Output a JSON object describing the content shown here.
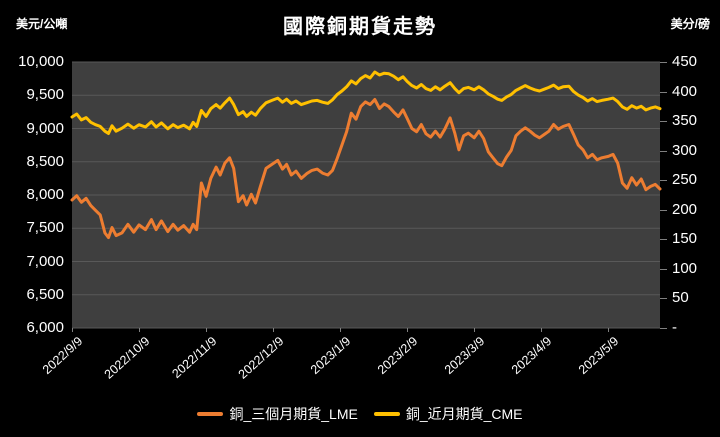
{
  "title": "國際銅期貨走勢",
  "left_axis": {
    "unit": "美元/公噸",
    "min": 6000,
    "max": 10000,
    "step": 500,
    "labels": [
      "10,000",
      "9,500",
      "9,000",
      "8,500",
      "8,000",
      "7,500",
      "7,000",
      "6,500",
      "6,000"
    ]
  },
  "right_axis": {
    "unit": "美分/磅",
    "min": 0,
    "max": 450,
    "step": 50,
    "labels": [
      "450",
      "400",
      "350",
      "300",
      "250",
      "200",
      "150",
      "100",
      "50",
      "-"
    ]
  },
  "x_axis": {
    "labels": [
      "2022/9/9",
      "2022/10/9",
      "2022/11/9",
      "2022/12/9",
      "2023/1/9",
      "2023/2/9",
      "2023/3/9",
      "2023/4/9",
      "2023/5/9"
    ]
  },
  "legend": {
    "items": [
      {
        "label": "銅_三個月期貨_LME",
        "color": "#ED7D31"
      },
      {
        "label": "銅_近月期貨_CME",
        "color": "#FFC000"
      }
    ]
  },
  "colors": {
    "background": "#000000",
    "plot_background": "#3F3F3F",
    "gridline": "#595959",
    "text": "#FFFFFF",
    "lme_orange": "#ED7D31",
    "cme_yellow": "#FFC000"
  },
  "chart_data": {
    "type": "line",
    "title": "國際銅期貨走勢",
    "x_range_note": "x is fraction of plot width; month ticks 2022/9/9..2023/5/9 fall at i*0.1139",
    "grid": true,
    "legend_position": "bottom",
    "series": [
      {
        "name": "銅_三個月期貨_LME",
        "axis": "left",
        "units": "USD/metric ton",
        "color": "#ED7D31",
        "points": [
          [
            0.0,
            7925
          ],
          [
            0.008,
            7990
          ],
          [
            0.016,
            7890
          ],
          [
            0.024,
            7950
          ],
          [
            0.032,
            7840
          ],
          [
            0.04,
            7770
          ],
          [
            0.048,
            7700
          ],
          [
            0.056,
            7430
          ],
          [
            0.062,
            7360
          ],
          [
            0.068,
            7510
          ],
          [
            0.075,
            7390
          ],
          [
            0.085,
            7430
          ],
          [
            0.095,
            7560
          ],
          [
            0.105,
            7440
          ],
          [
            0.114,
            7550
          ],
          [
            0.125,
            7480
          ],
          [
            0.135,
            7630
          ],
          [
            0.143,
            7480
          ],
          [
            0.152,
            7610
          ],
          [
            0.163,
            7450
          ],
          [
            0.172,
            7560
          ],
          [
            0.18,
            7470
          ],
          [
            0.19,
            7540
          ],
          [
            0.2,
            7440
          ],
          [
            0.206,
            7560
          ],
          [
            0.212,
            7480
          ],
          [
            0.22,
            8180
          ],
          [
            0.228,
            7980
          ],
          [
            0.236,
            8250
          ],
          [
            0.245,
            8420
          ],
          [
            0.252,
            8300
          ],
          [
            0.26,
            8480
          ],
          [
            0.268,
            8560
          ],
          [
            0.275,
            8400
          ],
          [
            0.283,
            7900
          ],
          [
            0.291,
            7990
          ],
          [
            0.297,
            7850
          ],
          [
            0.305,
            8010
          ],
          [
            0.312,
            7880
          ],
          [
            0.32,
            8120
          ],
          [
            0.33,
            8400
          ],
          [
            0.34,
            8460
          ],
          [
            0.35,
            8520
          ],
          [
            0.358,
            8390
          ],
          [
            0.365,
            8460
          ],
          [
            0.373,
            8300
          ],
          [
            0.381,
            8360
          ],
          [
            0.39,
            8250
          ],
          [
            0.399,
            8320
          ],
          [
            0.408,
            8370
          ],
          [
            0.417,
            8390
          ],
          [
            0.426,
            8330
          ],
          [
            0.435,
            8300
          ],
          [
            0.443,
            8370
          ],
          [
            0.451,
            8550
          ],
          [
            0.459,
            8750
          ],
          [
            0.467,
            8950
          ],
          [
            0.475,
            9230
          ],
          [
            0.483,
            9140
          ],
          [
            0.491,
            9330
          ],
          [
            0.499,
            9400
          ],
          [
            0.507,
            9360
          ],
          [
            0.515,
            9436
          ],
          [
            0.523,
            9300
          ],
          [
            0.531,
            9370
          ],
          [
            0.539,
            9330
          ],
          [
            0.547,
            9250
          ],
          [
            0.555,
            9180
          ],
          [
            0.563,
            9280
          ],
          [
            0.57,
            9150
          ],
          [
            0.578,
            9000
          ],
          [
            0.586,
            8950
          ],
          [
            0.594,
            9060
          ],
          [
            0.602,
            8920
          ],
          [
            0.61,
            8870
          ],
          [
            0.618,
            8960
          ],
          [
            0.626,
            8870
          ],
          [
            0.634,
            8990
          ],
          [
            0.643,
            9160
          ],
          [
            0.651,
            8930
          ],
          [
            0.658,
            8680
          ],
          [
            0.666,
            8890
          ],
          [
            0.674,
            8930
          ],
          [
            0.684,
            8860
          ],
          [
            0.692,
            8960
          ],
          [
            0.7,
            8850
          ],
          [
            0.708,
            8650
          ],
          [
            0.716,
            8560
          ],
          [
            0.724,
            8470
          ],
          [
            0.731,
            8440
          ],
          [
            0.739,
            8570
          ],
          [
            0.747,
            8670
          ],
          [
            0.755,
            8890
          ],
          [
            0.763,
            8960
          ],
          [
            0.771,
            9010
          ],
          [
            0.779,
            8960
          ],
          [
            0.787,
            8900
          ],
          [
            0.795,
            8860
          ],
          [
            0.803,
            8910
          ],
          [
            0.811,
            8960
          ],
          [
            0.819,
            9060
          ],
          [
            0.827,
            8990
          ],
          [
            0.835,
            9030
          ],
          [
            0.845,
            9060
          ],
          [
            0.853,
            8910
          ],
          [
            0.861,
            8750
          ],
          [
            0.869,
            8680
          ],
          [
            0.877,
            8560
          ],
          [
            0.885,
            8610
          ],
          [
            0.893,
            8530
          ],
          [
            0.901,
            8560
          ],
          [
            0.912,
            8580
          ],
          [
            0.92,
            8610
          ],
          [
            0.928,
            8480
          ],
          [
            0.936,
            8180
          ],
          [
            0.944,
            8100
          ],
          [
            0.952,
            8260
          ],
          [
            0.96,
            8150
          ],
          [
            0.968,
            8240
          ],
          [
            0.976,
            8080
          ],
          [
            0.984,
            8130
          ],
          [
            0.992,
            8160
          ],
          [
            1.0,
            8090
          ]
        ]
      },
      {
        "name": "銅_近月期貨_CME",
        "axis": "right",
        "units": "US cents/pound",
        "color": "#FFC000",
        "points": [
          [
            0.0,
            357
          ],
          [
            0.008,
            362
          ],
          [
            0.016,
            352
          ],
          [
            0.024,
            356
          ],
          [
            0.032,
            348
          ],
          [
            0.04,
            344
          ],
          [
            0.048,
            341
          ],
          [
            0.056,
            333
          ],
          [
            0.062,
            329
          ],
          [
            0.068,
            342
          ],
          [
            0.075,
            333
          ],
          [
            0.085,
            338
          ],
          [
            0.095,
            345
          ],
          [
            0.105,
            338
          ],
          [
            0.114,
            344
          ],
          [
            0.125,
            340
          ],
          [
            0.135,
            349
          ],
          [
            0.143,
            340
          ],
          [
            0.152,
            347
          ],
          [
            0.163,
            337
          ],
          [
            0.172,
            344
          ],
          [
            0.18,
            339
          ],
          [
            0.19,
            343
          ],
          [
            0.2,
            337
          ],
          [
            0.206,
            348
          ],
          [
            0.212,
            341
          ],
          [
            0.22,
            368
          ],
          [
            0.228,
            358
          ],
          [
            0.236,
            371
          ],
          [
            0.245,
            378
          ],
          [
            0.252,
            372
          ],
          [
            0.26,
            381
          ],
          [
            0.268,
            389
          ],
          [
            0.275,
            378
          ],
          [
            0.283,
            361
          ],
          [
            0.291,
            366
          ],
          [
            0.297,
            358
          ],
          [
            0.305,
            365
          ],
          [
            0.312,
            360
          ],
          [
            0.32,
            371
          ],
          [
            0.33,
            381
          ],
          [
            0.34,
            385
          ],
          [
            0.35,
            389
          ],
          [
            0.358,
            382
          ],
          [
            0.365,
            387
          ],
          [
            0.373,
            380
          ],
          [
            0.381,
            384
          ],
          [
            0.39,
            378
          ],
          [
            0.399,
            381
          ],
          [
            0.408,
            384
          ],
          [
            0.417,
            385
          ],
          [
            0.426,
            382
          ],
          [
            0.435,
            380
          ],
          [
            0.443,
            386
          ],
          [
            0.451,
            395
          ],
          [
            0.459,
            401
          ],
          [
            0.467,
            408
          ],
          [
            0.475,
            418
          ],
          [
            0.483,
            413
          ],
          [
            0.491,
            422
          ],
          [
            0.499,
            427
          ],
          [
            0.507,
            423
          ],
          [
            0.515,
            433
          ],
          [
            0.523,
            428
          ],
          [
            0.531,
            431
          ],
          [
            0.539,
            430
          ],
          [
            0.547,
            426
          ],
          [
            0.555,
            420
          ],
          [
            0.563,
            425
          ],
          [
            0.57,
            417
          ],
          [
            0.578,
            410
          ],
          [
            0.586,
            406
          ],
          [
            0.594,
            412
          ],
          [
            0.602,
            405
          ],
          [
            0.61,
            402
          ],
          [
            0.618,
            408
          ],
          [
            0.626,
            403
          ],
          [
            0.634,
            409
          ],
          [
            0.643,
            415
          ],
          [
            0.651,
            405
          ],
          [
            0.658,
            398
          ],
          [
            0.666,
            405
          ],
          [
            0.674,
            407
          ],
          [
            0.684,
            403
          ],
          [
            0.692,
            408
          ],
          [
            0.7,
            403
          ],
          [
            0.708,
            396
          ],
          [
            0.716,
            392
          ],
          [
            0.724,
            387
          ],
          [
            0.731,
            385
          ],
          [
            0.739,
            391
          ],
          [
            0.747,
            395
          ],
          [
            0.755,
            402
          ],
          [
            0.763,
            406
          ],
          [
            0.771,
            410
          ],
          [
            0.779,
            406
          ],
          [
            0.787,
            403
          ],
          [
            0.795,
            401
          ],
          [
            0.803,
            404
          ],
          [
            0.811,
            407
          ],
          [
            0.819,
            411
          ],
          [
            0.827,
            405
          ],
          [
            0.835,
            408
          ],
          [
            0.845,
            409
          ],
          [
            0.853,
            400
          ],
          [
            0.861,
            394
          ],
          [
            0.869,
            390
          ],
          [
            0.877,
            384
          ],
          [
            0.885,
            388
          ],
          [
            0.893,
            383
          ],
          [
            0.901,
            385
          ],
          [
            0.912,
            387
          ],
          [
            0.92,
            389
          ],
          [
            0.928,
            383
          ],
          [
            0.936,
            374
          ],
          [
            0.944,
            370
          ],
          [
            0.952,
            376
          ],
          [
            0.96,
            372
          ],
          [
            0.968,
            375
          ],
          [
            0.976,
            369
          ],
          [
            0.984,
            372
          ],
          [
            0.992,
            374
          ],
          [
            1.0,
            371
          ]
        ]
      }
    ]
  }
}
